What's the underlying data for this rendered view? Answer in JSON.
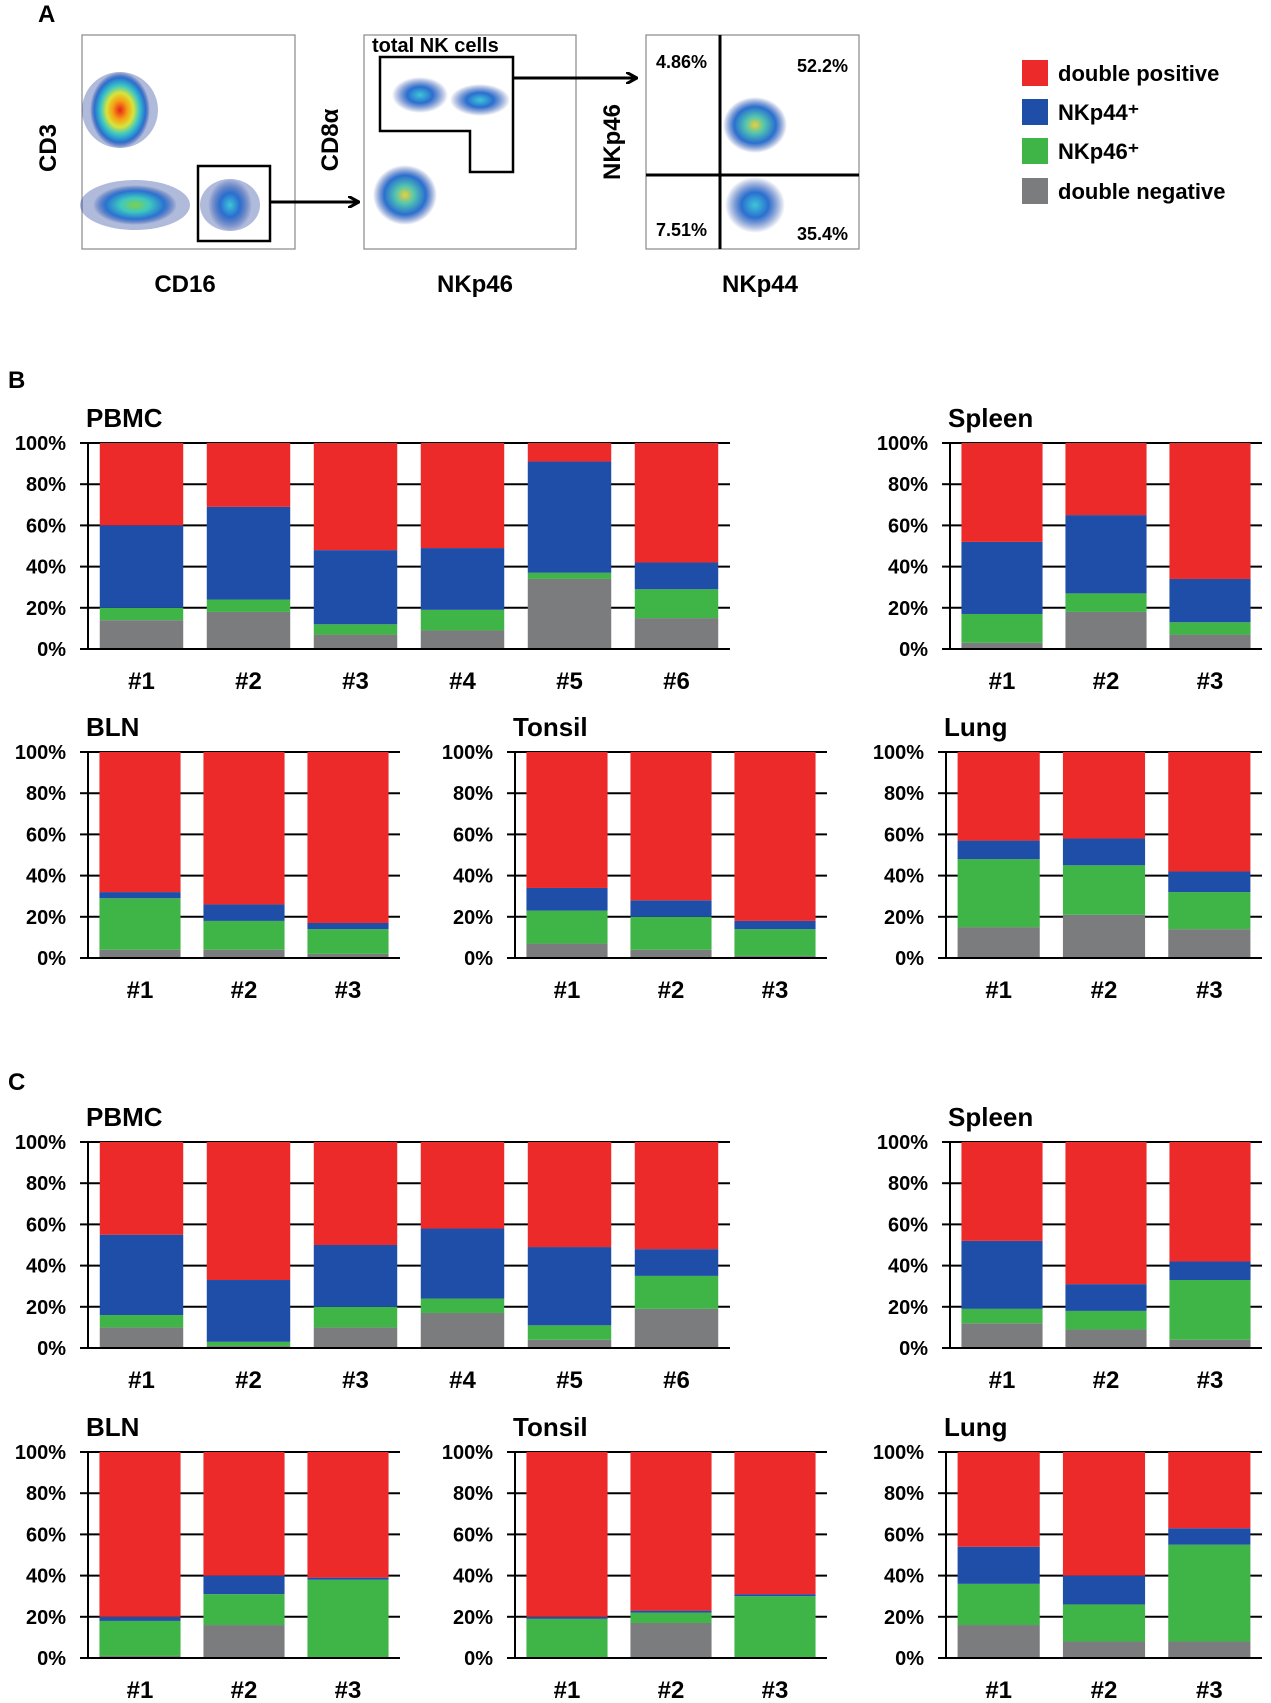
{
  "colors": {
    "double_positive": "#ec2a2a",
    "nkp44": "#1f4ea8",
    "nkp46": "#3fb548",
    "double_negative": "#7b7c7e"
  },
  "panels": {
    "A": "A",
    "B": "B",
    "C": "C"
  },
  "flow": {
    "plot1": {
      "xlabel": "CD16",
      "ylabel": "CD3"
    },
    "plot2": {
      "xlabel": "NKp46",
      "ylabel": "CD8α",
      "gate_label": "total NK cells"
    },
    "plot3": {
      "xlabel": "NKp44",
      "ylabel": "NKp46",
      "q_ul": "4.86%",
      "q_ur": "52.2%",
      "q_ll": "7.51%",
      "q_lr": "35.4%"
    }
  },
  "legend": [
    {
      "label": "double positive",
      "color_key": "double_positive"
    },
    {
      "label": "NKp44⁺",
      "color_key": "nkp44"
    },
    {
      "label": "NKp46⁺",
      "color_key": "nkp46"
    },
    {
      "label": "double negative",
      "color_key": "double_negative"
    }
  ],
  "chart_data": [
    {
      "panel": "B",
      "type": "bar",
      "stacked": true,
      "title": "PBMC",
      "categories": [
        "#1",
        "#2",
        "#3",
        "#4",
        "#5",
        "#6"
      ],
      "ylim": [
        0,
        100
      ],
      "yticks": [
        "0%",
        "20%",
        "40%",
        "60%",
        "80%",
        "100%"
      ],
      "series": [
        {
          "name": "double negative",
          "values": [
            14,
            18,
            7,
            9,
            34,
            15
          ]
        },
        {
          "name": "NKp46⁺",
          "values": [
            6,
            6,
            5,
            10,
            3,
            14
          ]
        },
        {
          "name": "NKp44⁺",
          "values": [
            40,
            45,
            36,
            30,
            54,
            13
          ]
        },
        {
          "name": "double positive",
          "values": [
            40,
            31,
            52,
            51,
            9,
            58
          ]
        }
      ]
    },
    {
      "panel": "B",
      "type": "bar",
      "stacked": true,
      "title": "Spleen",
      "categories": [
        "#1",
        "#2",
        "#3"
      ],
      "ylim": [
        0,
        100
      ],
      "yticks": [
        "0%",
        "20%",
        "40%",
        "60%",
        "80%",
        "100%"
      ],
      "series": [
        {
          "name": "double negative",
          "values": [
            3,
            18,
            7
          ]
        },
        {
          "name": "NKp46⁺",
          "values": [
            14,
            9,
            6
          ]
        },
        {
          "name": "NKp44⁺",
          "values": [
            35,
            38,
            21
          ]
        },
        {
          "name": "double positive",
          "values": [
            48,
            35,
            66
          ]
        }
      ]
    },
    {
      "panel": "B",
      "type": "bar",
      "stacked": true,
      "title": "BLN",
      "categories": [
        "#1",
        "#2",
        "#3"
      ],
      "ylim": [
        0,
        100
      ],
      "yticks": [
        "0%",
        "20%",
        "40%",
        "60%",
        "80%",
        "100%"
      ],
      "series": [
        {
          "name": "double negative",
          "values": [
            4,
            4,
            2
          ]
        },
        {
          "name": "NKp46⁺",
          "values": [
            25,
            14,
            12
          ]
        },
        {
          "name": "NKp44⁺",
          "values": [
            3,
            8,
            3
          ]
        },
        {
          "name": "double positive",
          "values": [
            68,
            74,
            83
          ]
        }
      ]
    },
    {
      "panel": "B",
      "type": "bar",
      "stacked": true,
      "title": "Tonsil",
      "categories": [
        "#1",
        "#2",
        "#3"
      ],
      "ylim": [
        0,
        100
      ],
      "yticks": [
        "0%",
        "20%",
        "40%",
        "60%",
        "80%",
        "100%"
      ],
      "series": [
        {
          "name": "double negative",
          "values": [
            7,
            4,
            1
          ]
        },
        {
          "name": "NKp46⁺",
          "values": [
            16,
            16,
            13
          ]
        },
        {
          "name": "NKp44⁺",
          "values": [
            11,
            8,
            4
          ]
        },
        {
          "name": "double positive",
          "values": [
            66,
            72,
            82
          ]
        }
      ]
    },
    {
      "panel": "B",
      "type": "bar",
      "stacked": true,
      "title": "Lung",
      "categories": [
        "#1",
        "#2",
        "#3"
      ],
      "ylim": [
        0,
        100
      ],
      "yticks": [
        "0%",
        "20%",
        "40%",
        "60%",
        "80%",
        "100%"
      ],
      "series": [
        {
          "name": "double negative",
          "values": [
            15,
            21,
            14
          ]
        },
        {
          "name": "NKp46⁺",
          "values": [
            33,
            24,
            18
          ]
        },
        {
          "name": "NKp44⁺",
          "values": [
            9,
            13,
            10
          ]
        },
        {
          "name": "double positive",
          "values": [
            43,
            42,
            58
          ]
        }
      ]
    },
    {
      "panel": "C",
      "type": "bar",
      "stacked": true,
      "title": "PBMC",
      "categories": [
        "#1",
        "#2",
        "#3",
        "#4",
        "#5",
        "#6"
      ],
      "ylim": [
        0,
        100
      ],
      "yticks": [
        "0%",
        "20%",
        "40%",
        "60%",
        "80%",
        "100%"
      ],
      "series": [
        {
          "name": "double negative",
          "values": [
            10,
            1,
            10,
            17,
            4,
            19
          ]
        },
        {
          "name": "NKp46⁺",
          "values": [
            6,
            2,
            10,
            7,
            7,
            16
          ]
        },
        {
          "name": "NKp44⁺",
          "values": [
            39,
            30,
            30,
            34,
            38,
            13
          ]
        },
        {
          "name": "double positive",
          "values": [
            45,
            67,
            50,
            42,
            51,
            52
          ]
        }
      ]
    },
    {
      "panel": "C",
      "type": "bar",
      "stacked": true,
      "title": "Spleen",
      "categories": [
        "#1",
        "#2",
        "#3"
      ],
      "ylim": [
        0,
        100
      ],
      "yticks": [
        "0%",
        "20%",
        "40%",
        "60%",
        "80%",
        "100%"
      ],
      "series": [
        {
          "name": "double negative",
          "values": [
            12,
            9,
            4
          ]
        },
        {
          "name": "NKp46⁺",
          "values": [
            7,
            9,
            29
          ]
        },
        {
          "name": "NKp44⁺",
          "values": [
            33,
            13,
            9
          ]
        },
        {
          "name": "double positive",
          "values": [
            48,
            69,
            58
          ]
        }
      ]
    },
    {
      "panel": "C",
      "type": "bar",
      "stacked": true,
      "title": "BLN",
      "categories": [
        "#1",
        "#2",
        "#3"
      ],
      "ylim": [
        0,
        100
      ],
      "yticks": [
        "0%",
        "20%",
        "40%",
        "60%",
        "80%",
        "100%"
      ],
      "series": [
        {
          "name": "double negative",
          "values": [
            1,
            16,
            0
          ]
        },
        {
          "name": "NKp46⁺",
          "values": [
            17,
            15,
            38
          ]
        },
        {
          "name": "NKp44⁺",
          "values": [
            2,
            9,
            1
          ]
        },
        {
          "name": "double positive",
          "values": [
            80,
            60,
            61
          ]
        }
      ]
    },
    {
      "panel": "C",
      "type": "bar",
      "stacked": true,
      "title": "Tonsil",
      "categories": [
        "#1",
        "#2",
        "#3"
      ],
      "ylim": [
        0,
        100
      ],
      "yticks": [
        "0%",
        "20%",
        "40%",
        "60%",
        "80%",
        "100%"
      ],
      "series": [
        {
          "name": "double negative",
          "values": [
            0,
            17,
            0
          ]
        },
        {
          "name": "NKp46⁺",
          "values": [
            19,
            5,
            30
          ]
        },
        {
          "name": "NKp44⁺",
          "values": [
            1,
            1,
            1
          ]
        },
        {
          "name": "double positive",
          "values": [
            80,
            77,
            69
          ]
        }
      ]
    },
    {
      "panel": "C",
      "type": "bar",
      "stacked": true,
      "title": "Lung",
      "categories": [
        "#1",
        "#2",
        "#3"
      ],
      "ylim": [
        0,
        100
      ],
      "yticks": [
        "0%",
        "20%",
        "40%",
        "60%",
        "80%",
        "100%"
      ],
      "series": [
        {
          "name": "double negative",
          "values": [
            16,
            8,
            8
          ]
        },
        {
          "name": "NKp46⁺",
          "values": [
            20,
            18,
            47
          ]
        },
        {
          "name": "NKp44⁺",
          "values": [
            18,
            14,
            8
          ]
        },
        {
          "name": "double positive",
          "values": [
            46,
            60,
            37
          ]
        }
      ]
    }
  ]
}
